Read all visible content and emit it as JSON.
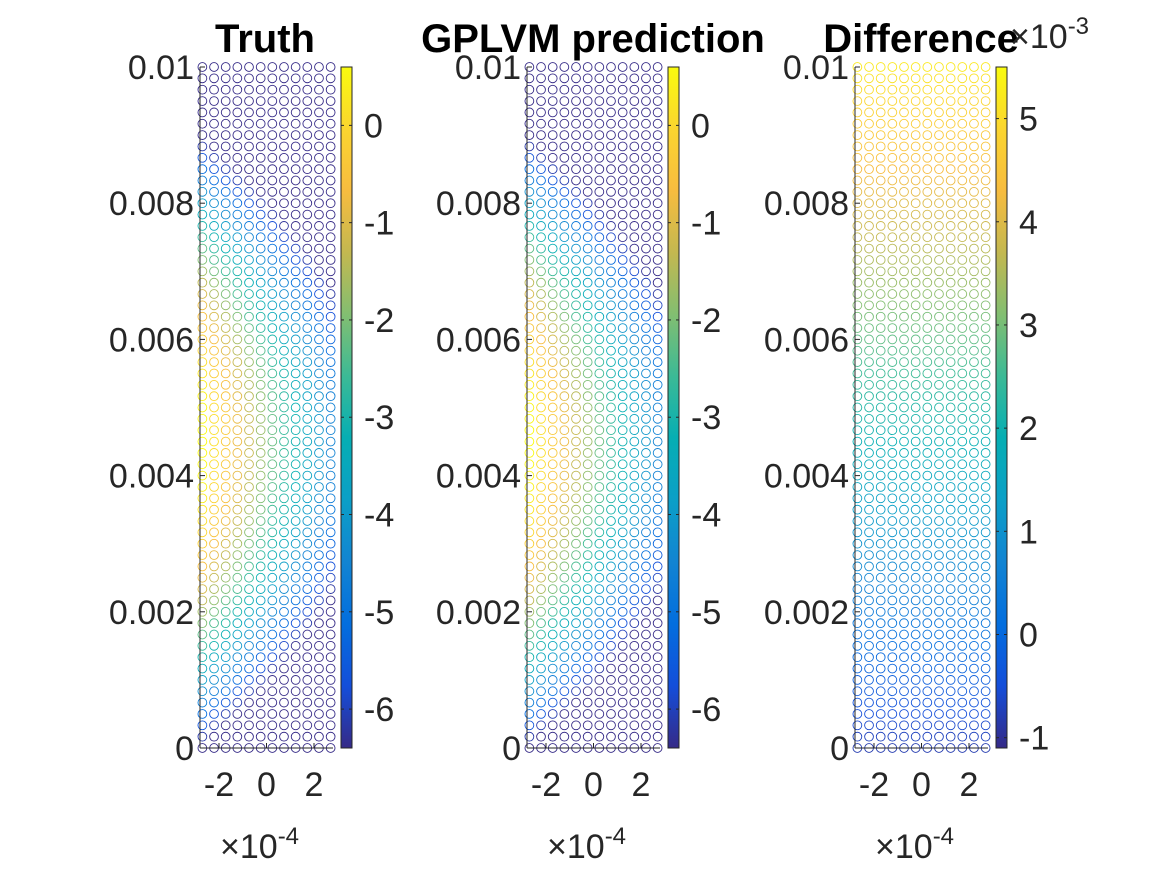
{
  "chart_data": [
    {
      "type": "scatter",
      "title": "Truth",
      "xlabel": "",
      "ylabel": "",
      "x_exponent_label": "×10",
      "x_exponent_power": "-4",
      "xlim": [
        -0.00028,
        0.00028
      ],
      "ylim": [
        0,
        0.01
      ],
      "xticks": [
        -0.0002,
        0,
        0.0002
      ],
      "xtick_labels": [
        "-2",
        "0",
        "2"
      ],
      "yticks": [
        0,
        0.002,
        0.004,
        0.006,
        0.008,
        0.01
      ],
      "ytick_labels": [
        "0",
        "0.002",
        "0.004",
        "0.006",
        "0.008",
        "0.01"
      ],
      "grid": {
        "x_count": 12,
        "y_count": 61,
        "x_range": [
          -0.00027,
          0.00027
        ],
        "y_range": [
          0,
          0.01
        ]
      },
      "field": {
        "center_x": -0.00027,
        "center_y": 0.0045,
        "gain_x": 5.3,
        "gain_y": 0.36,
        "offset": 0.6,
        "min": -6.4,
        "max": 0.6
      },
      "colorbar": {
        "lim": [
          -6.4,
          0.6
        ],
        "ticks": [
          0,
          -1,
          -2,
          -3,
          -4,
          -5,
          -6
        ],
        "tick_labels": [
          "0",
          "-1",
          "-2",
          "-3",
          "-4",
          "-5",
          "-6"
        ],
        "exponent": ""
      },
      "colormap": "parula"
    },
    {
      "type": "scatter",
      "title": "GPLVM prediction",
      "xlabel": "",
      "ylabel": "",
      "x_exponent_label": "×10",
      "x_exponent_power": "-4",
      "xlim": [
        -0.00028,
        0.00028
      ],
      "ylim": [
        0,
        0.01
      ],
      "xticks": [
        -0.0002,
        0,
        0.0002
      ],
      "xtick_labels": [
        "-2",
        "0",
        "2"
      ],
      "yticks": [
        0,
        0.002,
        0.004,
        0.006,
        0.008,
        0.01
      ],
      "ytick_labels": [
        "0",
        "0.002",
        "0.004",
        "0.006",
        "0.008",
        "0.01"
      ],
      "grid": {
        "x_count": 12,
        "y_count": 61,
        "x_range": [
          -0.00027,
          0.00027
        ],
        "y_range": [
          0,
          0.01
        ]
      },
      "field": {
        "center_x": -0.00027,
        "center_y": 0.0045,
        "gain_x": 5.3,
        "gain_y": 0.36,
        "offset": 0.6,
        "min": -6.4,
        "max": 0.6
      },
      "colorbar": {
        "lim": [
          -6.4,
          0.6
        ],
        "ticks": [
          0,
          -1,
          -2,
          -3,
          -4,
          -5,
          -6
        ],
        "tick_labels": [
          "0",
          "-1",
          "-2",
          "-3",
          "-4",
          "-5",
          "-6"
        ],
        "exponent": ""
      },
      "colormap": "parula"
    },
    {
      "type": "scatter",
      "title": "Difference",
      "xlabel": "",
      "ylabel": "",
      "x_exponent_label": "×10",
      "x_exponent_power": "-4",
      "xlim": [
        -0.00028,
        0.00028
      ],
      "ylim": [
        0,
        0.01
      ],
      "xticks": [
        -0.0002,
        0,
        0.0002
      ],
      "xtick_labels": [
        "-2",
        "0",
        "2"
      ],
      "yticks": [
        0,
        0.002,
        0.004,
        0.006,
        0.008,
        0.01
      ],
      "ytick_labels": [
        "0",
        "0.002",
        "0.004",
        "0.006",
        "0.008",
        "0.01"
      ],
      "grid": {
        "x_count": 12,
        "y_count": 61,
        "x_range": [
          -0.00027,
          0.00027
        ],
        "y_range": [
          0,
          0.01
        ]
      },
      "field": {
        "type": "linear_y",
        "bottom": -0.0008,
        "top": 0.0052,
        "min": -0.0011,
        "max": 0.0055
      },
      "colorbar": {
        "lim": [
          -0.0011,
          0.0055
        ],
        "ticks": [
          0.005,
          0.004,
          0.003,
          0.002,
          0.001,
          0,
          -0.001
        ],
        "tick_labels": [
          "5",
          "4",
          "3",
          "2",
          "1",
          "0",
          "-1"
        ],
        "exponent": "×10",
        "exponent_power": "-3"
      },
      "colormap": "parula"
    }
  ]
}
